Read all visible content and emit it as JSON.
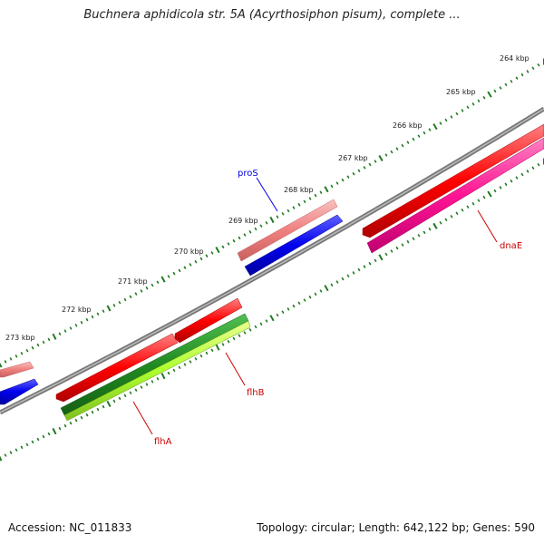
{
  "title": "Buchnera aphidicola str. 5A (Acyrthosiphon pisum), complete ...",
  "footer": {
    "accession": "Accession: NC_011833",
    "topology": "Topology: circular; Length: 642,122 bp; Genes: 590"
  },
  "scale": {
    "tick_labels": [
      "264 kbp",
      "265 kbp",
      "266 kbp",
      "267 kbp",
      "268 kbp",
      "269 kbp",
      "270 kbp",
      "271 kbp",
      "272 kbp",
      "273 kbp"
    ],
    "tick_color": "#1f7a1f"
  },
  "genes": [
    {
      "name": "proS",
      "color": "#0000dd"
    },
    {
      "name": "dnaE",
      "color": "#cc0000"
    },
    {
      "name": "flhB",
      "color": "#cc0000"
    },
    {
      "name": "flhA",
      "color": "#cc0000"
    }
  ],
  "colors": {
    "backbone": "#888888",
    "gene_red": "#ee0000",
    "gene_pink": "#f08080",
    "gene_blue": "#0000ee",
    "gene_magenta": "#ff1493",
    "gene_green": "#228b22",
    "gene_lightgreen": "#adff2f"
  }
}
